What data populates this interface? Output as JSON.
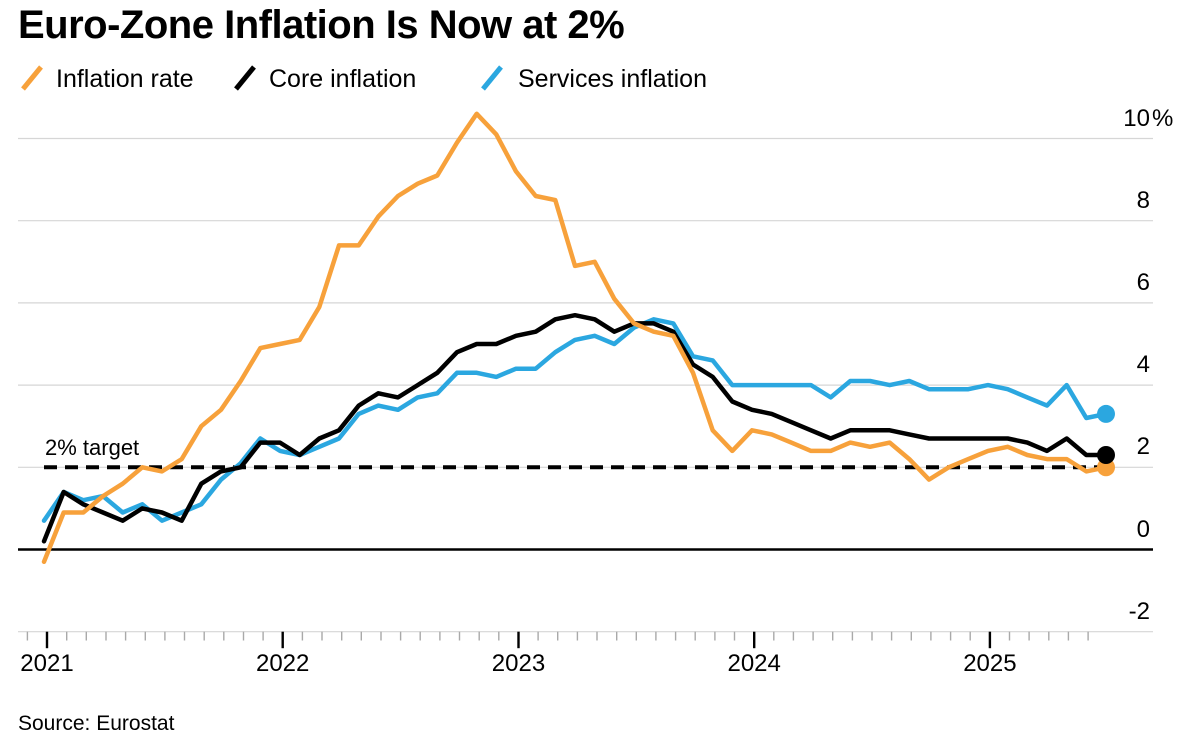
{
  "header": {
    "title": "Euro-Zone Inflation Is Now at 2%"
  },
  "footer": {
    "source": "Source: Eurostat"
  },
  "chart_data": {
    "type": "line",
    "title": "Euro-Zone Inflation Is Now at 2%",
    "unit": "percent, year-over-year",
    "legend_position": "top-left",
    "grid": "horizontal",
    "x": [
      "Dec 2020",
      "Jan 2021",
      "Feb 2021",
      "Mar 2021",
      "Apr 2021",
      "May 2021",
      "Jun 2021",
      "Jul 2021",
      "Aug 2021",
      "Sep 2021",
      "Oct 2021",
      "Nov 2021",
      "Dec 2021",
      "Jan 2022",
      "Feb 2022",
      "Mar 2022",
      "Apr 2022",
      "May 2022",
      "Jun 2022",
      "Jul 2022",
      "Aug 2022",
      "Sep 2022",
      "Oct 2022",
      "Nov 2022",
      "Dec 2022",
      "Jan 2023",
      "Feb 2023",
      "Mar 2023",
      "Apr 2023",
      "May 2023",
      "Jun 2023",
      "Jul 2023",
      "Aug 2023",
      "Sep 2023",
      "Oct 2023",
      "Nov 2023",
      "Dec 2023",
      "Jan 2024",
      "Feb 2024",
      "Mar 2024",
      "Apr 2024",
      "May 2024",
      "Jun 2024",
      "Jul 2024",
      "Aug 2024",
      "Sep 2024",
      "Oct 2024",
      "Nov 2024",
      "Dec 2024",
      "Jan 2025",
      "Feb 2025",
      "Mar 2025",
      "Apr 2025",
      "May 2025",
      "Jun 2025"
    ],
    "series": [
      {
        "name": "Inflation rate",
        "color": "#F7A13B",
        "values": [
          -0.3,
          0.9,
          0.9,
          1.3,
          1.6,
          2.0,
          1.9,
          2.2,
          3.0,
          3.4,
          4.1,
          4.9,
          5.0,
          5.1,
          5.9,
          7.4,
          7.4,
          8.1,
          8.6,
          8.9,
          9.1,
          9.9,
          10.6,
          10.1,
          9.2,
          8.6,
          8.5,
          6.9,
          7.0,
          6.1,
          5.5,
          5.3,
          5.2,
          4.3,
          2.9,
          2.4,
          2.9,
          2.8,
          2.6,
          2.4,
          2.4,
          2.6,
          2.5,
          2.6,
          2.2,
          1.7,
          2.0,
          2.2,
          2.4,
          2.5,
          2.3,
          2.2,
          2.2,
          1.9,
          2.0
        ]
      },
      {
        "name": "Core inflation",
        "color": "#000000",
        "values": [
          0.2,
          1.4,
          1.1,
          0.9,
          0.7,
          1.0,
          0.9,
          0.7,
          1.6,
          1.9,
          2.0,
          2.6,
          2.6,
          2.3,
          2.7,
          2.9,
          3.5,
          3.8,
          3.7,
          4.0,
          4.3,
          4.8,
          5.0,
          5.0,
          5.2,
          5.3,
          5.6,
          5.7,
          5.6,
          5.3,
          5.5,
          5.5,
          5.3,
          4.5,
          4.2,
          3.6,
          3.4,
          3.3,
          3.1,
          2.9,
          2.7,
          2.9,
          2.9,
          2.9,
          2.8,
          2.7,
          2.7,
          2.7,
          2.7,
          2.7,
          2.6,
          2.4,
          2.7,
          2.3,
          2.3
        ]
      },
      {
        "name": "Services inflation",
        "color": "#2BA7E0",
        "values": [
          0.7,
          1.4,
          1.2,
          1.3,
          0.9,
          1.1,
          0.7,
          0.9,
          1.1,
          1.7,
          2.1,
          2.7,
          2.4,
          2.3,
          2.5,
          2.7,
          3.3,
          3.5,
          3.4,
          3.7,
          3.8,
          4.3,
          4.3,
          4.2,
          4.4,
          4.4,
          4.8,
          5.1,
          5.2,
          5.0,
          5.4,
          5.6,
          5.5,
          4.7,
          4.6,
          4.0,
          4.0,
          4.0,
          4.0,
          4.0,
          3.7,
          4.1,
          4.1,
          4.0,
          4.1,
          3.9,
          3.9,
          3.9,
          4.0,
          3.9,
          3.7,
          3.5,
          4.0,
          3.2,
          3.3
        ]
      }
    ],
    "target_line": {
      "value": 2,
      "label": "2% target",
      "style": "dashed"
    },
    "y_axis": {
      "ticks": [
        10,
        8,
        6,
        4,
        2,
        0,
        -2
      ],
      "max_tick_suffix": "%",
      "range": [
        -2.9,
        10.9
      ]
    },
    "x_axis": {
      "year_labels": [
        "2021",
        "2022",
        "2023",
        "2024",
        "2025"
      ]
    },
    "colors": {
      "grid": "#D6D6D6",
      "zero_line": "#000000",
      "minor_tick": "#A9A9A9",
      "major_tick": "#000000",
      "target": "#000000",
      "background": "#FFFFFF"
    }
  }
}
